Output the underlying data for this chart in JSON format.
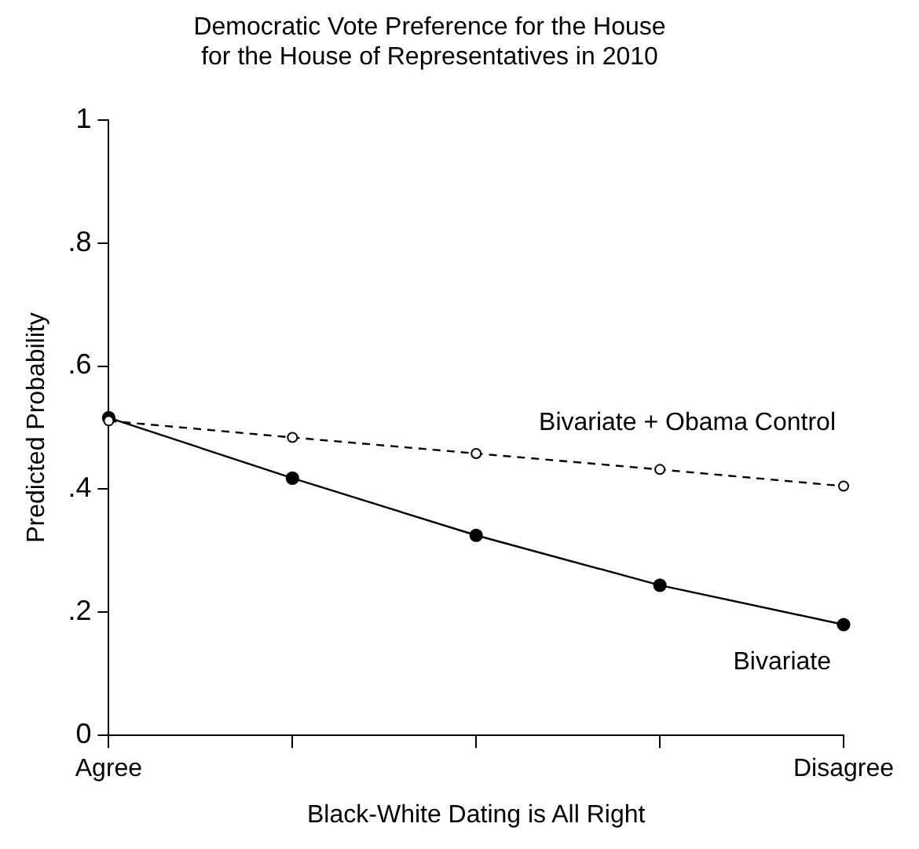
{
  "chart_data": {
    "type": "line",
    "title": "Democratic Vote Preference for the House\nfor the House of Representatives in 2010",
    "xlabel": "Black-White Dating is All Right",
    "ylabel": "Predicted Probability",
    "categories": [
      "Agree",
      null,
      null,
      null,
      "Disagree"
    ],
    "series": [
      {
        "name": "Bivariate + Obama Control",
        "color": "#000000",
        "values": [
          0.511,
          0.484,
          0.458,
          0.432,
          0.405
        ],
        "line_style": "dashed"
      },
      {
        "name": "Bivariate",
        "color": "#000000",
        "values": [
          0.516,
          0.418,
          0.325,
          0.244,
          0.18
        ],
        "line_style": "solid"
      }
    ],
    "ylim": [
      0,
      1
    ],
    "yticks": [
      0,
      {
        "value": 0.2,
        "label": ".2"
      },
      {
        "value": 0.4,
        "label": ".4"
      },
      {
        "value": 0.6,
        "label": ".6"
      },
      {
        "value": 0.8,
        "label": ".8"
      },
      1
    ],
    "grid": false,
    "legend": false,
    "marker": "circle"
  }
}
